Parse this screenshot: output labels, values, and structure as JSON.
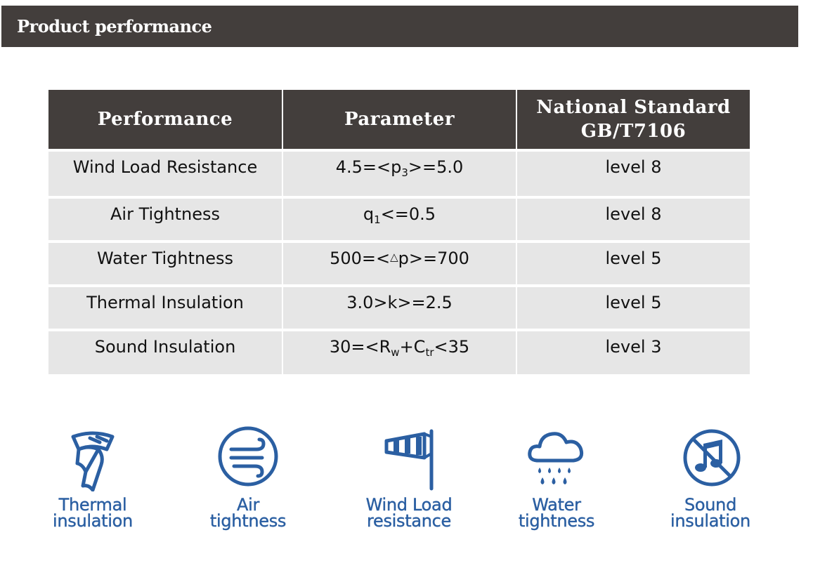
{
  "header": {
    "title": "Product performance"
  },
  "table": {
    "headers": [
      "Performance",
      "Parameter",
      "National Standard GB/T7106"
    ],
    "rows": [
      {
        "performance": "Wind Load Resistance",
        "param": {
          "pre": "4.5=<p",
          "sub": "3",
          "post": ">=5.0"
        },
        "standard": "level 8"
      },
      {
        "performance": "Air Tightness",
        "param": {
          "pre": "q",
          "sub": "1",
          "post": "<=0.5"
        },
        "standard": "level 8"
      },
      {
        "performance": "Water Tightness",
        "param": {
          "pre": "500=<",
          "symbol": "△",
          "post": "p>=700"
        },
        "standard": "level 5"
      },
      {
        "performance": "Thermal Insulation",
        "param": {
          "pre": "3.0>k>=2.5"
        },
        "standard": "level 5"
      },
      {
        "performance": "Sound Insulation",
        "param": {
          "pre": "30=<R",
          "sub": "w",
          "mid": "+C",
          "sub2": "tr",
          "post": "<35"
        },
        "standard": "level 3"
      }
    ]
  },
  "features": [
    {
      "icon": "thermal-insulation-icon",
      "line1": "Thermal",
      "line2": "insulation"
    },
    {
      "icon": "air-tightness-icon",
      "line1": "Air",
      "line2": "tightness"
    },
    {
      "icon": "wind-load-icon",
      "line1": "Wind Load",
      "line2": "resistance"
    },
    {
      "icon": "water-tightness-icon",
      "line1": "Water",
      "line2": "tightness"
    },
    {
      "icon": "sound-insulation-icon",
      "line1": "Sound",
      "line2": "insulation"
    }
  ],
  "colors": {
    "header_bg": "#433e3c",
    "row_bg": "#e6e6e6",
    "icon_blue": "#2b5fa2"
  }
}
